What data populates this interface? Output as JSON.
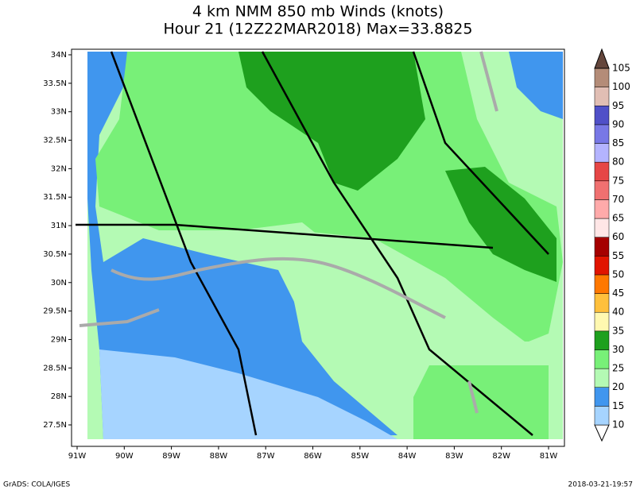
{
  "title": [
    "4 km NMM 850 mb Winds (knots)",
    "Hour 21 (12Z22MAR2018) Max=33.8825"
  ],
  "lat_labels": [
    "34N",
    "33.5N",
    "33N",
    "32.5N",
    "32N",
    "31.5N",
    "31N",
    "30.5N",
    "30N",
    "29.5N",
    "29N",
    "28.5N",
    "28N",
    "27.5N"
  ],
  "lon_labels": [
    "91W",
    "90W",
    "89W",
    "88W",
    "87W",
    "86W",
    "85W",
    "84W",
    "83W",
    "82W",
    "81W"
  ],
  "colorbar": {
    "levels": [
      10,
      15,
      20,
      25,
      30,
      35,
      40,
      45,
      50,
      55,
      60,
      65,
      70,
      75,
      80,
      85,
      90,
      95,
      100,
      105
    ],
    "colors": [
      "#ffffff",
      "#a6d4ff",
      "#4096ee",
      "#b4fab4",
      "#78f078",
      "#1ea01e",
      "#fff8b0",
      "#ffc03c",
      "#ff7800",
      "#e11400",
      "#a50000",
      "#ffe6e6",
      "#ffaaaa",
      "#f07070",
      "#e64646",
      "#b4b4ff",
      "#7878e6",
      "#5050c8",
      "#e1beb4",
      "#b48c78",
      "#64463c"
    ]
  },
  "footer": {
    "left": "GrADS: COLA/IGES",
    "right": "2018-03-21-19:57"
  }
}
